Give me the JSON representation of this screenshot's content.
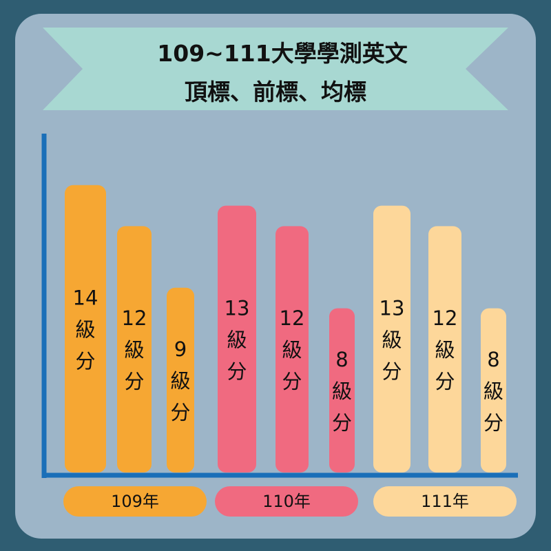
{
  "title": {
    "line1": "109~111大學學測英文",
    "line2": "頂標、前標、均標"
  },
  "colors": {
    "background": "#2f5d72",
    "card": "#9db5c8",
    "banner": "#a8d8d2",
    "axis": "#1a6fb8",
    "year_109": "#f6a733",
    "year_110": "#f06a80",
    "year_111": "#fdd79a"
  },
  "chart_data": {
    "type": "bar",
    "categories": [
      "109年",
      "110年",
      "111年"
    ],
    "series": [
      {
        "values": [
          14,
          13,
          13
        ],
        "labels": [
          "14級分",
          "13級分",
          "13級分"
        ]
      },
      {
        "values": [
          12,
          12,
          12
        ],
        "labels": [
          "12級分",
          "12級分",
          "12級分"
        ]
      },
      {
        "values": [
          9,
          8,
          8
        ],
        "labels": [
          "9級分",
          "8級分",
          "8級分"
        ]
      }
    ],
    "unit": "級分",
    "title": "109~111大學學測英文 頂標、前標、均標",
    "xlabel": "",
    "ylabel": "",
    "grid": false,
    "legend": "none"
  }
}
